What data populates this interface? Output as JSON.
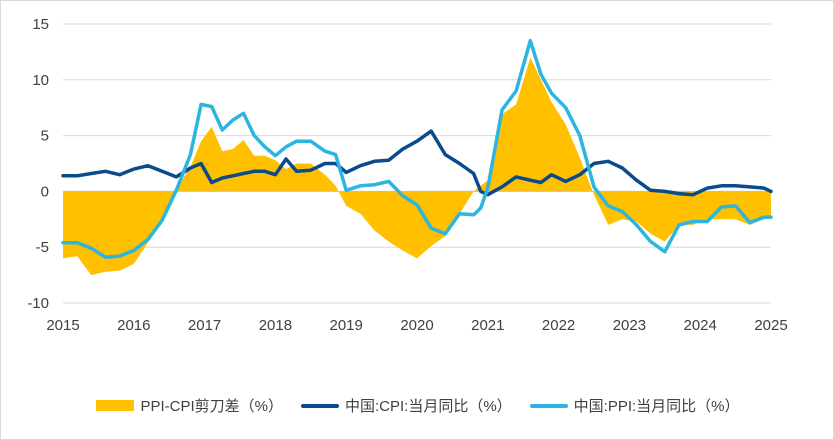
{
  "chart_data": {
    "type": "line",
    "ylim": [
      -10,
      15
    ],
    "yticks": [
      "15",
      "10",
      "5",
      "0",
      "-5",
      "-10"
    ],
    "xlim": [
      2015,
      2025
    ],
    "xticks": [
      "2015",
      "2016",
      "2017",
      "2018",
      "2019",
      "2020",
      "2021",
      "2022",
      "2023",
      "2024",
      "2025"
    ],
    "grid": "horizontal",
    "legend_position": "bottom",
    "x": [
      2015.0,
      2015.2,
      2015.4,
      2015.6,
      2015.8,
      2016.0,
      2016.2,
      2016.4,
      2016.6,
      2016.8,
      2016.95,
      2017.1,
      2017.25,
      2017.4,
      2017.55,
      2017.7,
      2017.85,
      2018.0,
      2018.15,
      2018.3,
      2018.5,
      2018.7,
      2018.85,
      2019.0,
      2019.2,
      2019.4,
      2019.6,
      2019.8,
      2020.0,
      2020.2,
      2020.4,
      2020.6,
      2020.8,
      2020.9,
      2021.0,
      2021.2,
      2021.4,
      2021.6,
      2021.75,
      2021.9,
      2022.1,
      2022.3,
      2022.5,
      2022.7,
      2022.9,
      2023.1,
      2023.3,
      2023.5,
      2023.7,
      2023.9,
      2024.1,
      2024.3,
      2024.5,
      2024.7,
      2024.9,
      2025.0
    ],
    "series": [
      {
        "name": "PPI-CPI剪刀差（%）",
        "kind": "area",
        "color": "#FFC000",
        "values": [
          -6.0,
          -5.8,
          -7.5,
          -7.2,
          -7.1,
          -6.5,
          -4.6,
          -2.5,
          0.2,
          2.2,
          4.5,
          5.8,
          3.6,
          3.8,
          4.6,
          3.2,
          3.2,
          2.8,
          2.0,
          2.5,
          2.5,
          1.5,
          0.5,
          -1.3,
          -2.0,
          -3.5,
          -4.5,
          -5.3,
          -6.0,
          -4.9,
          -4.0,
          -2.0,
          0.0,
          0.5,
          1.0,
          6.9,
          7.8,
          12.0,
          10.0,
          8.0,
          6.0,
          3.0,
          -0.3,
          -3.0,
          -2.5,
          -2.7,
          -3.8,
          -4.5,
          -3.0,
          -3.0,
          -2.5,
          -2.5,
          -2.5,
          -3.0,
          -2.5,
          -2.5
        ]
      },
      {
        "name": "中国:CPI:当月同比（%）",
        "kind": "line",
        "color": "#0B4A8B",
        "values": [
          1.4,
          1.4,
          1.6,
          1.8,
          1.5,
          2.0,
          2.3,
          1.8,
          1.3,
          2.1,
          2.5,
          0.8,
          1.2,
          1.4,
          1.6,
          1.8,
          1.8,
          1.5,
          2.9,
          1.8,
          1.9,
          2.5,
          2.5,
          1.7,
          2.3,
          2.7,
          2.8,
          3.8,
          4.5,
          5.4,
          3.3,
          2.5,
          1.6,
          0.0,
          -0.3,
          0.4,
          1.3,
          1.0,
          0.8,
          1.5,
          0.9,
          1.5,
          2.5,
          2.7,
          2.1,
          1.0,
          0.1,
          0.0,
          -0.2,
          -0.3,
          0.3,
          0.5,
          0.5,
          0.4,
          0.3,
          0.0
        ]
      },
      {
        "name": "中国:PPI:当月同比（%）",
        "kind": "line",
        "color": "#2BB5E0",
        "values": [
          -4.6,
          -4.6,
          -5.1,
          -5.9,
          -5.8,
          -5.3,
          -4.3,
          -2.6,
          0.1,
          3.3,
          7.8,
          7.6,
          5.5,
          6.4,
          7.0,
          5.0,
          4.0,
          3.2,
          4.0,
          4.5,
          4.5,
          3.6,
          3.3,
          0.1,
          0.5,
          0.6,
          0.9,
          -0.4,
          -1.2,
          -3.3,
          -3.8,
          -2.0,
          -2.1,
          -1.5,
          0.3,
          7.3,
          9.0,
          13.5,
          10.5,
          8.8,
          7.5,
          5.0,
          0.4,
          -1.3,
          -1.8,
          -3.0,
          -4.5,
          -5.4,
          -3.0,
          -2.7,
          -2.7,
          -1.4,
          -1.3,
          -2.8,
          -2.3,
          -2.3
        ]
      }
    ]
  }
}
